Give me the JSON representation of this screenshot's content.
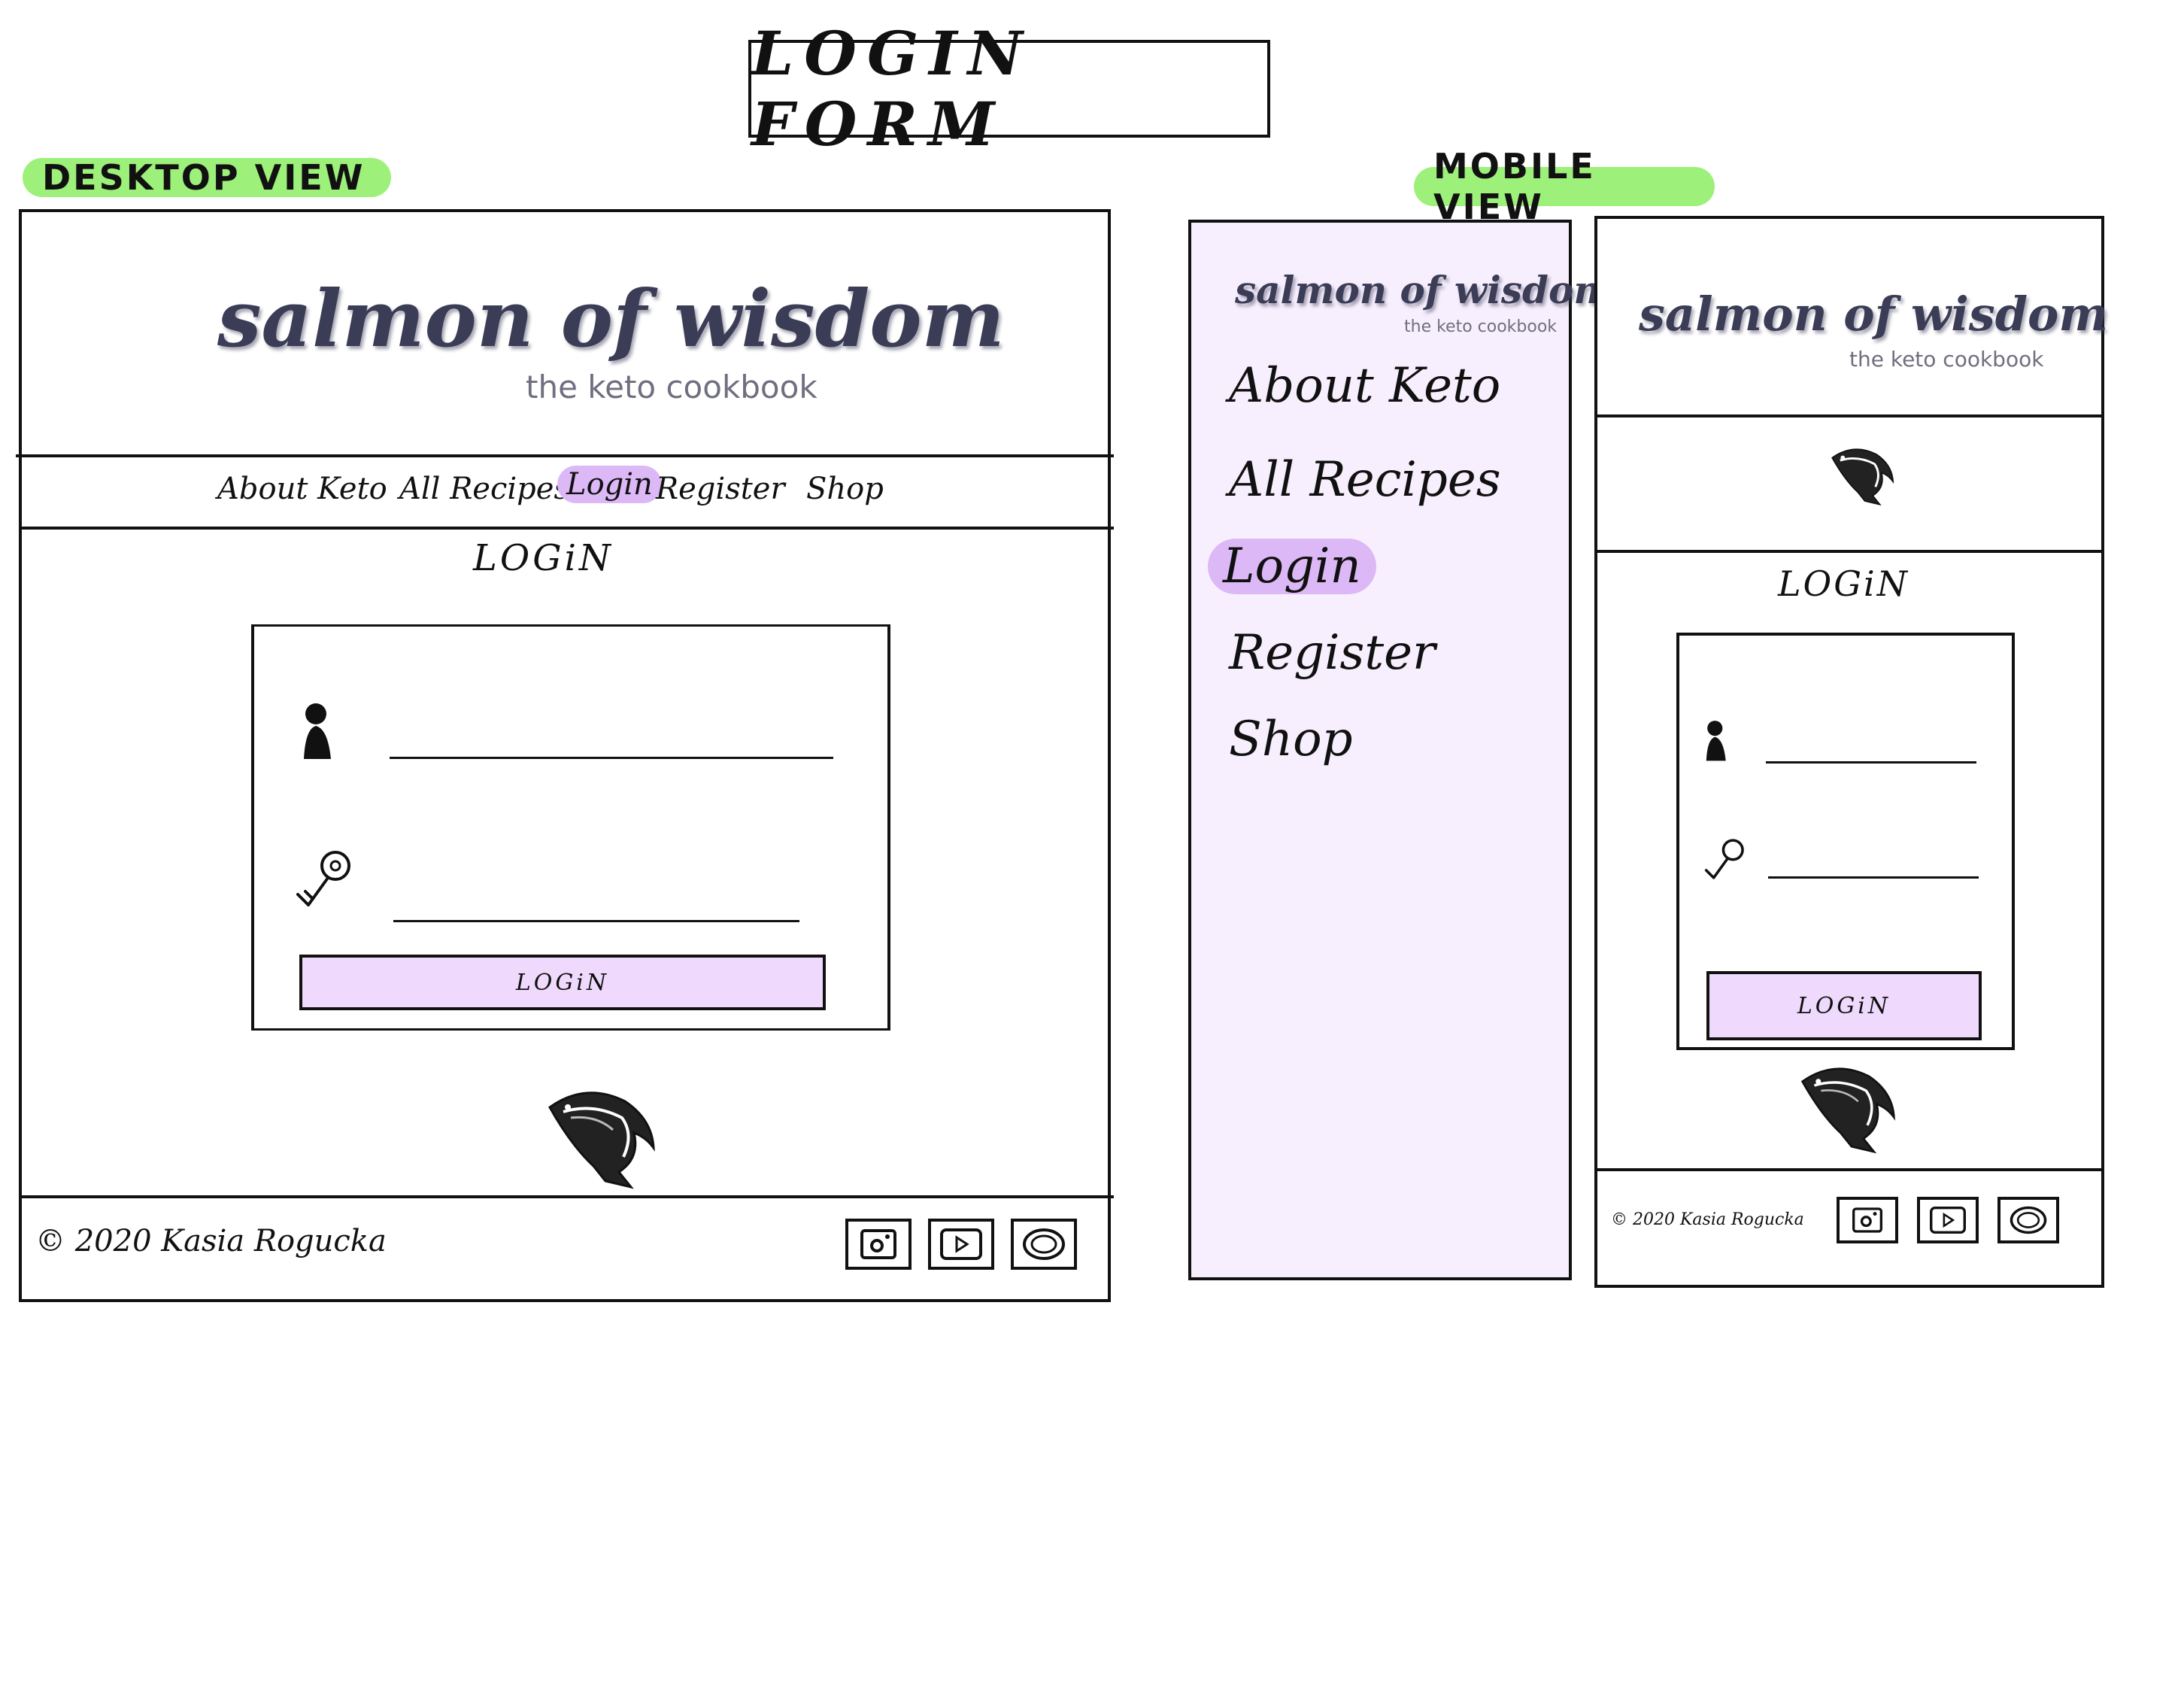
{
  "title": "LOGIN FORM",
  "views": {
    "desktop_label": "DESKTOP VIEW",
    "mobile_label": "MOBILE VIEW"
  },
  "colors": {
    "label_green": "#9df07a",
    "accent_purple": "#dcb8f6",
    "button_fill": "#efdafd",
    "drawer_fill": "#f7effd",
    "logo_ink": "#3b3c55"
  },
  "logo": {
    "main": "salmon of wisdom",
    "sub": "the keto cookbook"
  },
  "nav": {
    "items": [
      "About Keto",
      "All Recipes",
      "Login",
      "Register",
      "Shop"
    ],
    "active": "Login"
  },
  "login": {
    "heading": "LOGiN",
    "button_label": "LOGiN",
    "user_icon": "user-icon",
    "key_icon": "key-icon"
  },
  "footer": {
    "copyright": "© 2020 Kasia Rogucka",
    "social_icons": [
      "instagram-icon",
      "youtube-icon",
      "facebook-icon"
    ]
  },
  "mascot_icon": "salmon-icon"
}
